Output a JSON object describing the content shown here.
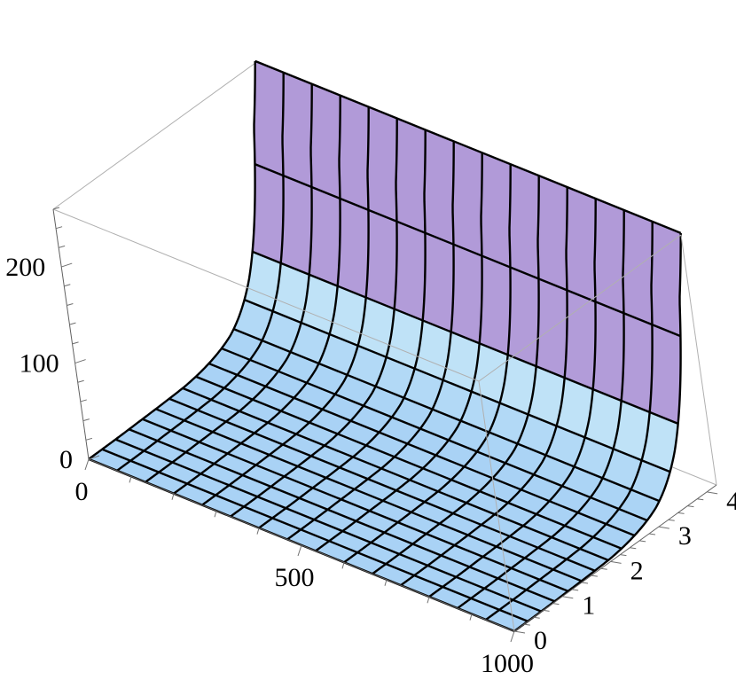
{
  "chart_data": {
    "type": "surface3d",
    "title": "",
    "xlabel": "",
    "ylabel": "",
    "zlabel": "",
    "x_range": [
      0,
      1000
    ],
    "y_range": [
      0,
      4.2
    ],
    "z_range": [
      0,
      260
    ],
    "x_ticks": [
      0,
      500,
      1000
    ],
    "y_ticks": [
      0,
      1,
      2,
      3,
      4
    ],
    "z_ticks": [
      0,
      100,
      200
    ],
    "x_tick_labels": [
      "0",
      "500",
      "1000"
    ],
    "y_tick_labels": [
      "0",
      "1",
      "2",
      "3",
      "4"
    ],
    "z_tick_labels": [
      "0",
      "100",
      "200"
    ],
    "mesh": {
      "x_lines": 15,
      "y_lines": 15
    },
    "profile_along_y": {
      "description_points": [
        {
          "y": 0.0,
          "z": 0
        },
        {
          "y": 1.0,
          "z": 1
        },
        {
          "y": 2.0,
          "z": 3
        },
        {
          "y": 2.5,
          "z": 8
        },
        {
          "y": 3.0,
          "z": 20
        },
        {
          "y": 3.5,
          "z": 60
        },
        {
          "y": 4.0,
          "z": 200
        },
        {
          "y": 4.2,
          "z": 262
        }
      ]
    },
    "colors": {
      "low": "#a9d2f5",
      "mid": "#c8e8f8",
      "high": "#9a4ab8",
      "box": "#b0b0b0"
    }
  }
}
